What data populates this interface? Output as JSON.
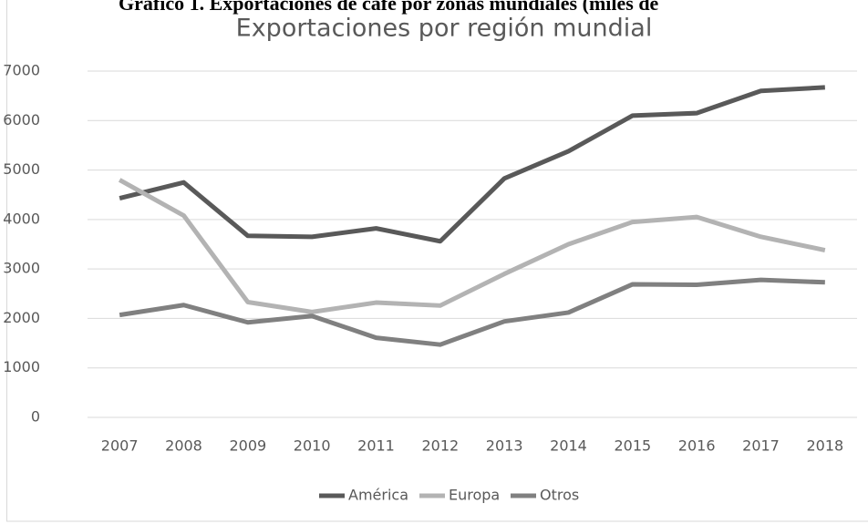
{
  "caption": "Gráfico 1. Exportaciones de café por zonas mundiales (miles de",
  "chart_data": {
    "type": "line",
    "title": "Exportaciones por región mundial",
    "categories": [
      "2007",
      "2008",
      "2009",
      "2010",
      "2011",
      "2012",
      "2013",
      "2014",
      "2015",
      "2016",
      "2017",
      "2018"
    ],
    "series": [
      {
        "name": "América",
        "color": "#595959",
        "values": [
          4430,
          4750,
          3670,
          3650,
          3820,
          3560,
          4830,
          5380,
          6100,
          6150,
          6600,
          6670
        ]
      },
      {
        "name": "Europa",
        "color": "#b3b3b3",
        "values": [
          4800,
          4080,
          2330,
          2130,
          2320,
          2260,
          2900,
          3500,
          3950,
          4050,
          3650,
          3380
        ]
      },
      {
        "name": "Otros",
        "color": "#808080",
        "values": [
          2070,
          2270,
          1920,
          2050,
          1610,
          1470,
          1940,
          2120,
          2690,
          2680,
          2780,
          2730
        ]
      }
    ],
    "ylim": [
      0,
      7000
    ],
    "yticks": [
      0,
      1000,
      2000,
      3000,
      4000,
      5000,
      6000,
      7000
    ],
    "grid": true,
    "legend": "bottom"
  }
}
